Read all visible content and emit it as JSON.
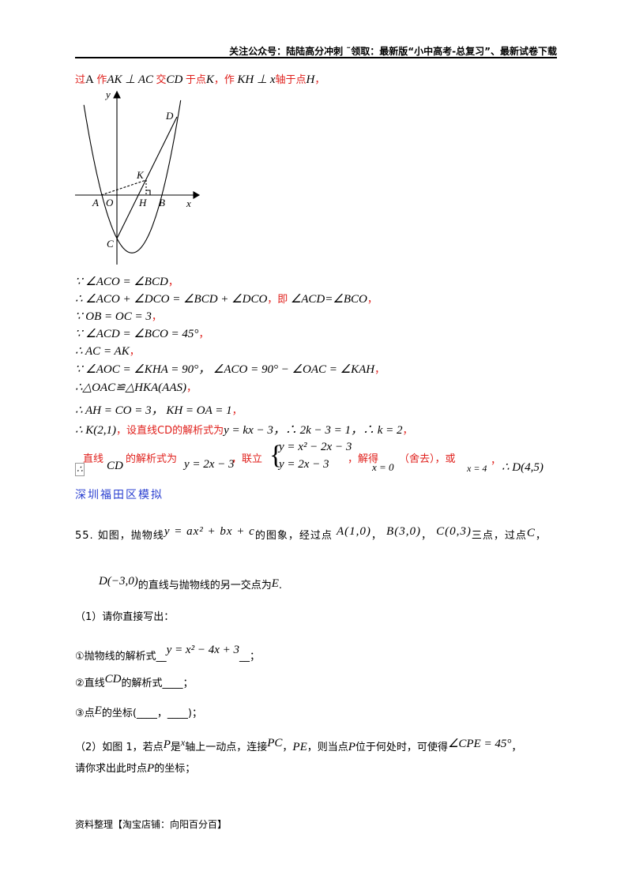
{
  "header": {
    "text": "关注公众号：陆陆高分冲刺  ˜领取：最新版“小中高考-总复习”、最新试卷下载"
  },
  "intro": {
    "p1": "过",
    "a": "A",
    "p2": "作",
    "m1": "AK ⊥ AC",
    "p3": "交",
    "m2": "CD",
    "p4": "于点",
    "m3": "K",
    "p5": "，作",
    "m4": "KH ⊥ x",
    "p6": "轴于点",
    "m5": "H",
    "p7": "，"
  },
  "figure": {
    "labels": {
      "y": "y",
      "x": "x",
      "D": "D",
      "K": "K",
      "A": "A",
      "O": "O",
      "H": "H",
      "B": "B",
      "C": "C"
    }
  },
  "steps": [
    {
      "m": "∵ ∠ACO = ∠BCD",
      "r": "，"
    },
    {
      "m": "∴ ∠ACO + ∠DCO = ∠BCD + ∠DCO",
      "r": "，即",
      "m2": "∠ACD=∠BCO",
      "r2": "，"
    },
    {
      "m": "∵ OB = OC = 3",
      "r": "，"
    },
    {
      "m": "∵ ∠ACD = ∠BCO = 45°",
      "r": "，"
    },
    {
      "m": "∴ AC = AK",
      "r": "，"
    },
    {
      "m": "∵ ∠AOC = ∠KHA = 90°，  ∠ACO = 90° − ∠OAC = ∠KAH",
      "r": "，"
    },
    {
      "m": "∴△OAC≌△HKA(AAS)",
      "r": "，"
    },
    {
      "m": "∴ AH = CO = 3，  KH = OA = 1",
      "r": "，"
    },
    {
      "m": "∴ K(2,1)",
      "r": "，设直线CD的解析式为",
      "m2": "y = kx − 3，∴ 2k − 3 = 1，∴ k = 2",
      "r2": "，"
    }
  ],
  "conclusion": {
    "therefore": "∴",
    "t1": "直线",
    "cd": "CD",
    "t2": "的解析式为",
    "eq": "y = 2x − 3",
    "t3": "，联立",
    "sys1": "y = x² − 2x − 3",
    "sys2": "y = 2x − 3",
    "t4": "，解得",
    "x0": "x = 0",
    "t5": "（舍去），或",
    "x4": "x = 4",
    "t6": "，",
    "d": "∴ D(4,5)"
  },
  "section": "深圳福田区模拟",
  "problem": {
    "line1_a": "55. 如图，抛物线",
    "eq": "y = ax² + bx + c",
    "line1_b": "的图象，经过点",
    "A": "A(1,0)",
    "B": "B(3,0)",
    "C": "C(0,3)",
    "line1_c": "三点，过点",
    "Cpt": "C",
    "comma": "，",
    "D": "D(−3,0)",
    "line2": "的直线与抛物线的另一交点为",
    "E": "E",
    "dot": ".",
    "part1": "（1）请你直接写出：",
    "q1a": "①抛物线的解析式__",
    "q1eq": "y = x² − 4x + 3",
    "q1b": "__；",
    "q2a": "②直线",
    "q2cd": "CD",
    "q2b": "的解析式____；",
    "q3a": "③点",
    "q3e": "E",
    "q3b": "的坐标(____，____)；",
    "part2a": "（2）如图 1，若点",
    "P": "P",
    "part2b": "是",
    "x": "x",
    "part2c": "轴上一动点，连接",
    "PC": "PC",
    "sep": "，",
    "PE": "PE",
    "part2d": "，则当点",
    "part2e": "位于何处时，可使得",
    "angle": "∠CPE = 45°",
    "part2f": "，",
    "part2g": "请你求出此时点",
    "part2h": "的坐标；"
  },
  "footer": {
    "text": "资料整理【淘宝店铺：向阳百分百】"
  }
}
